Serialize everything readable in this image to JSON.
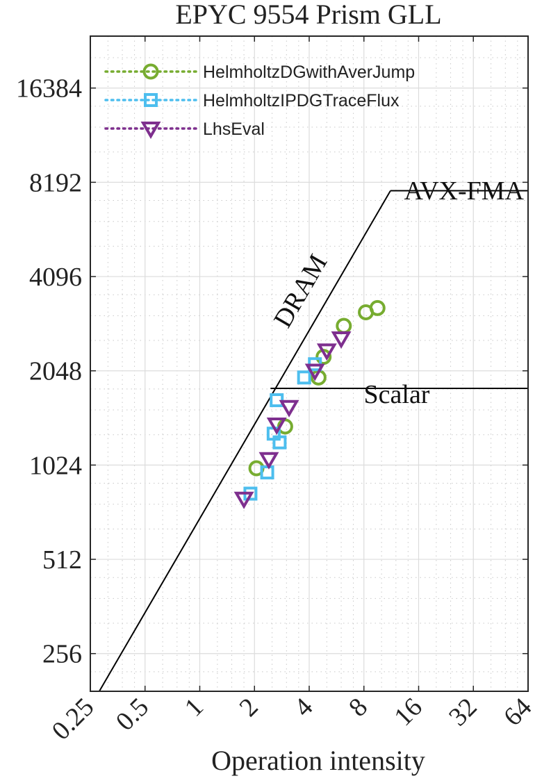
{
  "chart_data": {
    "type": "scatter",
    "title": "EPYC 9554 Prism GLL",
    "xlabel": "Operation intensity",
    "ylabel": "",
    "x_scale": "log2",
    "y_scale": "log2",
    "xlim": [
      0.25,
      64
    ],
    "ylim": [
      194,
      24000
    ],
    "x_ticks": [
      "0.25",
      "0.5",
      "1",
      "2",
      "4",
      "8",
      "16",
      "32",
      "64"
    ],
    "y_ticks": [
      "256",
      "512",
      "1024",
      "2048",
      "4096",
      "8192",
      "16384"
    ],
    "grid": true,
    "legend_position": "top-left",
    "rooflines": [
      {
        "label": "DRAM",
        "x": [
          0.28,
          11.2
        ],
        "y": [
          194,
          7700
        ]
      },
      {
        "label": "AVX-FMA",
        "x": [
          11.2,
          64
        ],
        "y": [
          7700,
          7700
        ]
      },
      {
        "label": "Scalar",
        "x": [
          2.45,
          64
        ],
        "y": [
          1800,
          1800
        ]
      }
    ],
    "series": [
      {
        "name": "HelmholtzDGwithAverJump",
        "marker": "circle",
        "color": "#77ac30",
        "x": [
          2.05,
          2.95,
          4.5,
          4.8,
          6.2,
          8.2,
          9.5
        ],
        "y": [
          1000,
          1360,
          1950,
          2270,
          2850,
          3150,
          3250
        ]
      },
      {
        "name": "HelmholtzIPDGTraceFlux",
        "marker": "square",
        "color": "#4dbeee",
        "x": [
          1.9,
          2.35,
          2.55,
          2.75,
          2.65,
          3.75,
          4.3
        ],
        "y": [
          830,
          970,
          1290,
          1210,
          1650,
          1950,
          2150
        ]
      },
      {
        "name": "LhsEval",
        "marker": "triangle-down",
        "color": "#7e2f8e",
        "x": [
          1.75,
          2.4,
          2.65,
          3.1,
          4.3,
          5.0,
          6.0
        ],
        "y": [
          800,
          1070,
          1380,
          1570,
          2050,
          2380,
          2600
        ]
      }
    ]
  }
}
